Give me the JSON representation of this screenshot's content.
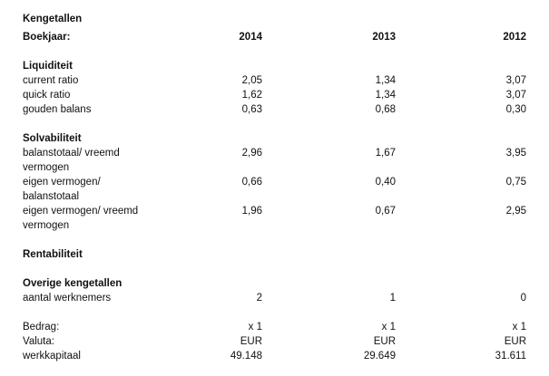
{
  "title": "Kengetallen",
  "header": {
    "label": "Boekjaar:",
    "years": [
      "2014",
      "2013",
      "2012"
    ]
  },
  "sections": [
    {
      "title": "Liquiditeit",
      "rows": [
        {
          "label": "current ratio",
          "values": [
            "2,05",
            "1,34",
            "3,07"
          ]
        },
        {
          "label": "quick ratio",
          "values": [
            "1,62",
            "1,34",
            "3,07"
          ]
        },
        {
          "label": "gouden balans",
          "values": [
            "0,63",
            "0,68",
            "0,30"
          ]
        }
      ]
    },
    {
      "title": "Solvabiliteit",
      "rows": [
        {
          "label": "balanstotaal/ vreemd vermogen",
          "values": [
            "2,96",
            "1,67",
            "3,95"
          ]
        },
        {
          "label": "eigen vermogen/ balanstotaal",
          "values": [
            "0,66",
            "0,40",
            "0,75"
          ]
        },
        {
          "label": "eigen vermogen/ vreemd vermogen",
          "values": [
            "1,96",
            "0,67",
            "2,95"
          ]
        }
      ]
    },
    {
      "title": "Rentabiliteit",
      "rows": []
    },
    {
      "title": "Overige kengetallen",
      "rows": [
        {
          "label": "aantal werknemers",
          "values": [
            "2",
            "1",
            "0"
          ]
        }
      ]
    }
  ],
  "footer": {
    "rows": [
      {
        "label": "Bedrag:",
        "values": [
          "x 1",
          "x 1",
          "x 1"
        ]
      },
      {
        "label": "Valuta:",
        "values": [
          "EUR",
          "EUR",
          "EUR"
        ]
      },
      {
        "label": "werkkapitaal",
        "values": [
          "49.148",
          "29.649",
          "31.611"
        ]
      }
    ]
  }
}
